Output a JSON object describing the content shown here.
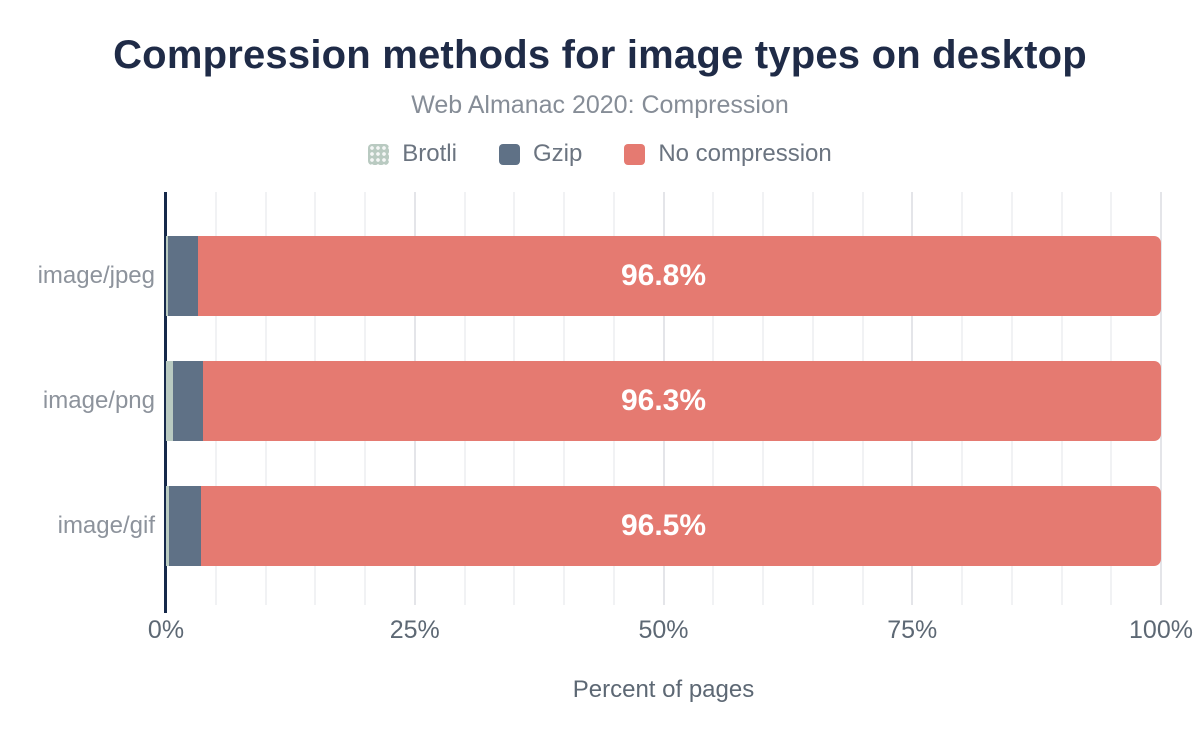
{
  "chart": {
    "title": "Compression methods for image types on desktop",
    "subtitle": "Web Almanac 2020: Compression",
    "xlabel": "Percent of pages"
  },
  "chart_data": {
    "type": "bar",
    "orientation": "horizontal",
    "stacked": true,
    "title": "Compression methods for image types on desktop",
    "subtitle": "Web Almanac 2020: Compression",
    "xlabel": "Percent of pages",
    "ylabel": "",
    "categories": [
      "image/jpeg",
      "image/png",
      "image/gif"
    ],
    "series": [
      {
        "name": "Brotli",
        "color": "#b9cac1",
        "patterned": true,
        "values": [
          0.2,
          0.7,
          0.3
        ]
      },
      {
        "name": "Gzip",
        "color": "#5f7186",
        "patterned": false,
        "values": [
          3.0,
          3.0,
          3.2
        ]
      },
      {
        "name": "No compression",
        "color": "#e57a71",
        "patterned": false,
        "values": [
          96.8,
          96.3,
          96.5
        ]
      }
    ],
    "bar_labels": [
      "96.8%",
      "96.3%",
      "96.5%"
    ],
    "xlim": [
      0,
      100
    ],
    "x_ticks": [
      {
        "label": "0%",
        "value": 0
      },
      {
        "label": "25%",
        "value": 25
      },
      {
        "label": "50%",
        "value": 50
      },
      {
        "label": "75%",
        "value": 75
      },
      {
        "label": "100%",
        "value": 100
      }
    ],
    "grid": {
      "show": true,
      "minor_step": 5,
      "major_step": 25
    },
    "legend_position": "top"
  },
  "colors": {
    "title_text": "#1f2b47",
    "subtitle_text": "#868d97",
    "legend_text": "#6b7480",
    "category_text": "#8d939c",
    "tick_text": "#5d6874",
    "bar_label_text": "#ffffff",
    "axis_line": "#16294a",
    "grid_minor": "#f1f2f4",
    "grid_major": "#e4e5e9",
    "background": "#ffffff"
  }
}
